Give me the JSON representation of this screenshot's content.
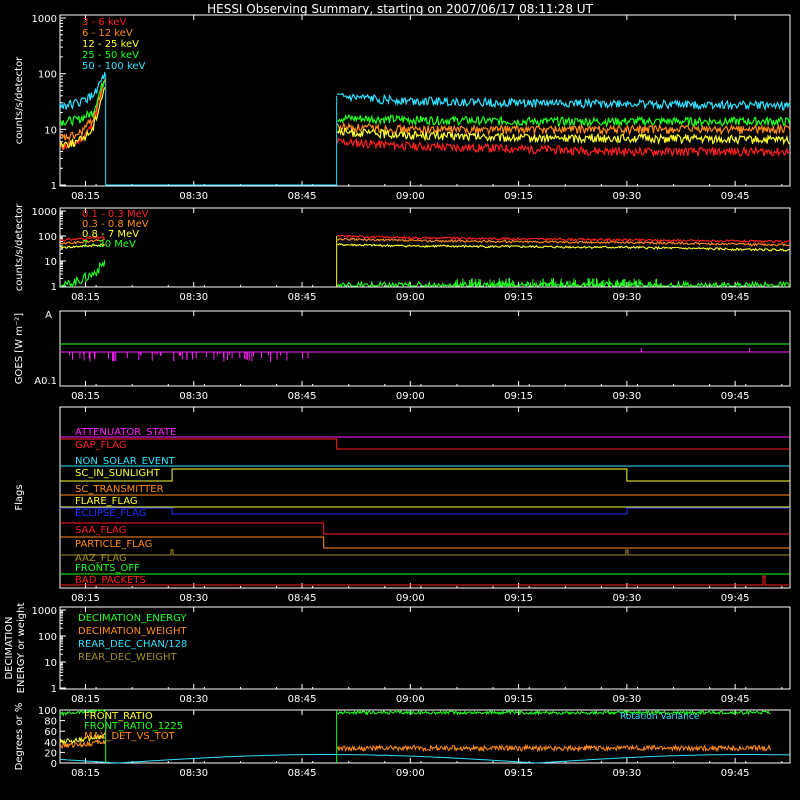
{
  "title": "HESSI Observing Summary, starting on 2007/06/17 08:11:28 UT",
  "time_ticks": [
    "08:15",
    "08:30",
    "08:45",
    "09:00",
    "09:15",
    "09:30",
    "09:45"
  ],
  "colors": {
    "red": "#ff2020",
    "orange": "#ff8c1a",
    "yellow": "#ffff30",
    "green": "#20ff20",
    "cyan": "#30e0ff",
    "magenta": "#ff20ff",
    "blue": "#2030ff",
    "olive": "#a09020",
    "white": "#ffffff"
  },
  "chart_data": [
    {
      "type": "line",
      "name": "low-energy",
      "ylabel": "counts/s/detector",
      "yscale": "log",
      "ylim": [
        1,
        1000
      ],
      "yticks": [
        "1",
        "10",
        "100",
        "1000"
      ],
      "legend": [
        "3 - 6 keV",
        "6 - 12 keV",
        "12 - 25 keV",
        "25 - 50 keV",
        "50 - 100 keV"
      ],
      "series": [
        {
          "name": "3 - 6 keV",
          "color": "red",
          "x": [
            "08:12",
            "08:14",
            "08:16",
            "08:17.8",
            "08:50",
            "09:00",
            "09:15",
            "09:30",
            "09:50"
          ],
          "values": [
            5,
            6,
            12,
            80,
            6,
            5,
            4.5,
            4,
            4
          ]
        },
        {
          "name": "6 - 12 keV",
          "color": "orange",
          "x": [
            "08:12",
            "08:14",
            "08:16",
            "08:17.8",
            "08:50",
            "09:00",
            "09:15",
            "09:30",
            "09:50"
          ],
          "values": [
            7,
            8,
            15,
            90,
            11,
            10,
            10,
            10,
            10
          ]
        },
        {
          "name": "12 - 25 keV",
          "color": "yellow",
          "x": [
            "08:12",
            "08:14",
            "08:16",
            "08:17.8",
            "08:50",
            "09:00",
            "09:15",
            "09:30",
            "09:50"
          ],
          "values": [
            5.5,
            6,
            10,
            70,
            9,
            8,
            7,
            7,
            6.5
          ]
        },
        {
          "name": "25 - 50 keV",
          "color": "green",
          "x": [
            "08:12",
            "08:14",
            "08:16",
            "08:17.8",
            "08:50",
            "09:00",
            "09:15",
            "09:30",
            "09:50"
          ],
          "values": [
            14,
            15,
            20,
            95,
            16,
            15,
            14,
            14,
            14
          ]
        },
        {
          "name": "50 - 100 keV",
          "color": "cyan",
          "x": [
            "08:12",
            "08:14",
            "08:16",
            "08:17.8",
            "08:50",
            "09:00",
            "09:15",
            "09:30",
            "09:50"
          ],
          "values": [
            27,
            30,
            40,
            100,
            38,
            33,
            30,
            29,
            27
          ]
        }
      ]
    },
    {
      "type": "line",
      "name": "high-energy",
      "ylabel": "counts/s/detector",
      "yscale": "log",
      "ylim": [
        1,
        1000
      ],
      "yticks": [
        "1",
        "10",
        "100",
        "1000"
      ],
      "legend": [
        "0.1 - 0.3 MeV",
        "0.3 - 0.8 MeV",
        "0.8 - 7 MeV",
        "7 - 20 MeV"
      ],
      "series": [
        {
          "name": "0.1 - 0.3 MeV",
          "color": "red",
          "x": [
            "08:12",
            "08:17.8",
            "08:50",
            "09:00",
            "09:30",
            "09:50"
          ],
          "values": [
            70,
            90,
            100,
            85,
            70,
            60
          ]
        },
        {
          "name": "0.3 - 0.8 MeV",
          "color": "orange",
          "x": [
            "08:12",
            "08:17.8",
            "08:50",
            "09:00",
            "09:30",
            "09:50"
          ],
          "values": [
            50,
            70,
            75,
            65,
            55,
            45
          ]
        },
        {
          "name": "0.8 - 7 MeV",
          "color": "yellow",
          "x": [
            "08:12",
            "08:17.8",
            "08:50",
            "09:00",
            "09:30",
            "09:50"
          ],
          "values": [
            35,
            45,
            45,
            40,
            35,
            28
          ]
        },
        {
          "name": "7 - 20 MeV",
          "color": "green",
          "x": [
            "08:12",
            "08:16",
            "08:17.8",
            "08:50",
            "09:00",
            "09:30",
            "09:50"
          ],
          "values": [
            1,
            3,
            10,
            1,
            1,
            1,
            1
          ]
        }
      ]
    },
    {
      "type": "line",
      "name": "goes",
      "ylabel": "GOES [W m⁻²]",
      "yticks": [
        "A0.1",
        "A"
      ],
      "series": [
        {
          "name": "",
          "color": "green",
          "x": [
            "08:12",
            "09:50"
          ],
          "values": [
            0.45,
            0.45
          ]
        },
        {
          "name": "",
          "color": "magenta",
          "x": [
            "08:12",
            "09:50"
          ],
          "values": [
            0.38,
            0.38
          ]
        }
      ]
    },
    {
      "type": "line",
      "name": "flags",
      "ylabel": "Flags",
      "flags": [
        {
          "label": "ATTENUATOR_STATE",
          "color": "magenta"
        },
        {
          "label": "GAP_FLAG",
          "color": "red"
        },
        {
          "label": "NON_SOLAR_EVENT",
          "color": "cyan"
        },
        {
          "label": "SC_IN_SUNLIGHT",
          "color": "yellow"
        },
        {
          "label": "SC_TRANSMITTER",
          "color": "orange"
        },
        {
          "label": "FLARE_FLAG",
          "color": "yellow"
        },
        {
          "label": "ECLIPSE_FLAG",
          "color": "blue"
        },
        {
          "label": "SAA_FLAG",
          "color": "red"
        },
        {
          "label": "PARTICLE_FLAG",
          "color": "orange"
        },
        {
          "label": "AAZ_FLAG",
          "color": "olive"
        },
        {
          "label": "FRONTS_OFF",
          "color": "green"
        },
        {
          "label": "BAD_PACKETS",
          "color": "red"
        }
      ]
    },
    {
      "type": "line",
      "name": "decimation",
      "ylabel": "DECIMATION ENERGY or weight",
      "yscale": "log",
      "ylim": [
        1,
        1000
      ],
      "yticks": [
        "1",
        "10",
        "100",
        "1000"
      ],
      "legend": [
        "DECIMATION_ENERGY",
        "DECIMATION_WEIGHT",
        "REAR_DEC_CHAN/128",
        "REAR_DEC_WEIGHT"
      ]
    },
    {
      "type": "line",
      "name": "ratios",
      "ylabel": "Degrees or %",
      "ylim": [
        0,
        100
      ],
      "yticks": [
        "0",
        "20",
        "40",
        "60",
        "80",
        "100"
      ],
      "legend": [
        "FRONT_RATIO",
        "FRONT_RATIO_1225",
        "MAX_DET_VS_TOT"
      ],
      "annotation": "Rotation Variance",
      "series": [
        {
          "name": "FRONT_RATIO",
          "color": "yellow",
          "x": [
            "08:12",
            "08:17.8"
          ],
          "values": [
            40,
            50
          ]
        },
        {
          "name": "FRONT_RATIO_1225",
          "color": "green",
          "x": [
            "08:12",
            "08:17.8",
            "08:50",
            "09:50"
          ],
          "values": [
            93,
            100,
            95,
            95
          ]
        },
        {
          "name": "MAX_DET_VS_TOT",
          "color": "orange",
          "x": [
            "08:12",
            "08:17.8",
            "08:50",
            "09:50"
          ],
          "values": [
            32,
            40,
            28,
            28
          ]
        }
      ]
    }
  ]
}
